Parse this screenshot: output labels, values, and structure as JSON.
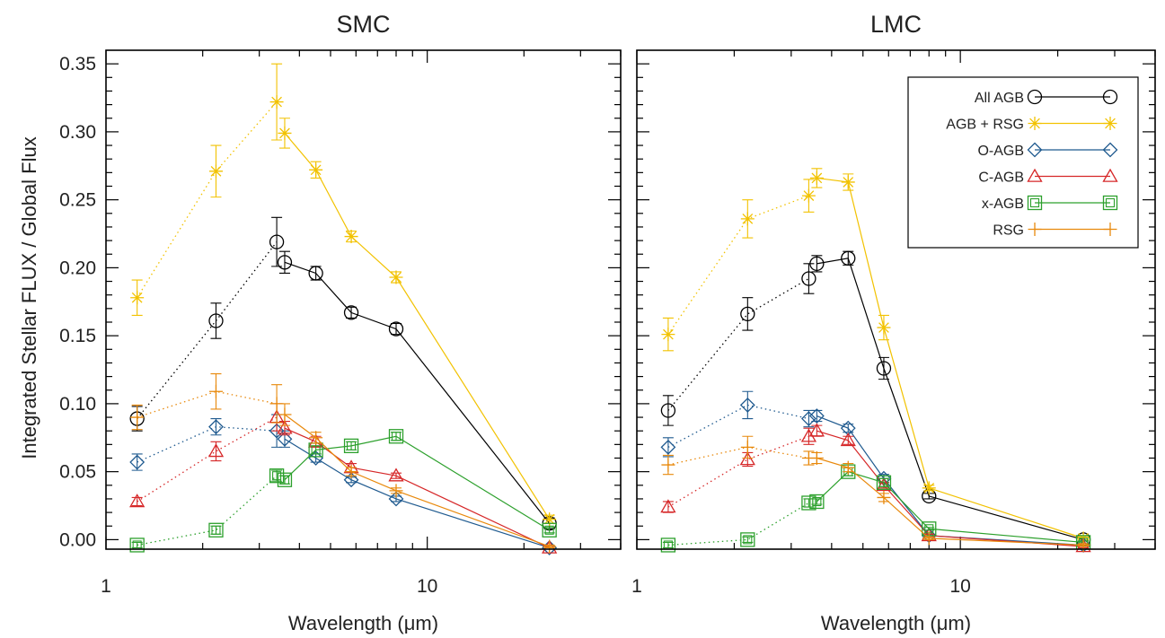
{
  "figure": {
    "ylabel": "Integrated Stellar FLUX / Global Flux",
    "xlabel": "Wavelength (μm)",
    "xticks": [
      "1",
      "10"
    ],
    "yticks": [
      "0.00",
      "0.05",
      "0.10",
      "0.15",
      "0.20",
      "0.25",
      "0.30",
      "0.35"
    ]
  },
  "colors": {
    "all_agb": "#000000",
    "agb_rsg": "#f2c200",
    "o_agb": "#1f5a8f",
    "c_agb": "#d62728",
    "x_agb": "#2ca02c",
    "rsg": "#e8890c"
  },
  "chart_data": [
    {
      "type": "line",
      "title": "SMC",
      "xlabel": "Wavelength (μm)",
      "ylabel": "Integrated Stellar FLUX / Global Flux",
      "xscale": "log",
      "xlim": [
        1,
        40
      ],
      "ylim": [
        -0.007,
        0.36
      ],
      "legend": false,
      "series": [
        {
          "name": "All AGB",
          "key": "all_agb",
          "marker": "circle",
          "x": [
            1.25,
            2.2,
            3.4,
            3.6,
            4.5,
            5.8,
            8.0,
            24.0
          ],
          "y": [
            0.089,
            0.161,
            0.219,
            0.204,
            0.196,
            0.167,
            0.155,
            0.012
          ],
          "err": [
            0.009,
            0.013,
            0.018,
            0.008,
            0.005,
            0.004,
            0.004,
            0.004
          ]
        },
        {
          "name": "AGB + RSG",
          "key": "agb_rsg",
          "marker": "asterisk",
          "x": [
            1.25,
            2.2,
            3.4,
            3.6,
            4.5,
            5.8,
            8.0,
            24.0
          ],
          "y": [
            0.178,
            0.271,
            0.322,
            0.299,
            0.272,
            0.223,
            0.193,
            0.015
          ],
          "err": [
            0.013,
            0.019,
            0.028,
            0.011,
            0.006,
            0.004,
            0.004,
            0.003
          ]
        },
        {
          "name": "O-AGB",
          "key": "o_agb",
          "marker": "diamond",
          "x": [
            1.25,
            2.2,
            3.4,
            3.6,
            4.5,
            5.8,
            8.0,
            24.0
          ],
          "y": [
            0.057,
            0.083,
            0.08,
            0.074,
            0.06,
            0.044,
            0.03,
            -0.006
          ],
          "err": [
            0.006,
            0.006,
            0.012,
            0.006,
            0.003,
            0.002,
            0.002,
            0.001
          ]
        },
        {
          "name": "C-AGB",
          "key": "c_agb",
          "marker": "triangle",
          "x": [
            1.25,
            2.2,
            3.4,
            3.6,
            4.5,
            5.8,
            8.0,
            24.0
          ],
          "y": [
            0.028,
            0.065,
            0.09,
            0.082,
            0.072,
            0.053,
            0.047,
            -0.006
          ],
          "err": [
            0.003,
            0.007,
            0.01,
            0.005,
            0.004,
            0.003,
            0.002,
            0.001
          ]
        },
        {
          "name": "x-AGB",
          "key": "x_agb",
          "marker": "square",
          "x": [
            1.25,
            2.2,
            3.4,
            3.6,
            4.5,
            5.8,
            8.0,
            24.0
          ],
          "y": [
            -0.004,
            0.007,
            0.047,
            0.044,
            0.066,
            0.069,
            0.076,
            0.007
          ],
          "err": [
            0.002,
            0.003,
            0.004,
            0.003,
            0.003,
            0.003,
            0.003,
            0.002
          ]
        },
        {
          "name": "RSG",
          "key": "rsg",
          "marker": "plus",
          "x": [
            1.25,
            2.2,
            3.4,
            3.6,
            4.5,
            5.8,
            8.0,
            24.0
          ],
          "y": [
            0.09,
            0.109,
            0.1,
            0.092,
            0.075,
            0.05,
            0.036,
            -0.005
          ],
          "err": [
            0.009,
            0.013,
            0.014,
            0.008,
            0.004,
            0.003,
            0.002,
            0.001
          ]
        }
      ]
    },
    {
      "type": "line",
      "title": "LMC",
      "xlabel": "Wavelength (μm)",
      "ylabel": "",
      "xscale": "log",
      "xlim": [
        1,
        40
      ],
      "ylim": [
        -0.007,
        0.36
      ],
      "legend": true,
      "legend_position": "top-right",
      "series": [
        {
          "name": "All AGB",
          "key": "all_agb",
          "marker": "circle",
          "x": [
            1.25,
            2.2,
            3.4,
            3.6,
            4.5,
            5.8,
            8.0,
            24.0
          ],
          "y": [
            0.095,
            0.166,
            0.192,
            0.203,
            0.207,
            0.126,
            0.032,
            0.0
          ],
          "err": [
            0.011,
            0.012,
            0.011,
            0.006,
            0.005,
            0.008,
            0.002,
            0.001
          ]
        },
        {
          "name": "AGB + RSG",
          "key": "agb_rsg",
          "marker": "asterisk",
          "x": [
            1.25,
            2.2,
            3.4,
            3.6,
            4.5,
            5.8,
            8.0,
            24.0
          ],
          "y": [
            0.151,
            0.236,
            0.253,
            0.266,
            0.263,
            0.156,
            0.038,
            0.001
          ],
          "err": [
            0.012,
            0.014,
            0.012,
            0.007,
            0.006,
            0.009,
            0.002,
            0.001
          ]
        },
        {
          "name": "O-AGB",
          "key": "o_agb",
          "marker": "diamond",
          "x": [
            1.25,
            2.2,
            3.4,
            3.6,
            4.5,
            5.8,
            8.0,
            24.0
          ],
          "y": [
            0.068,
            0.099,
            0.089,
            0.091,
            0.082,
            0.045,
            0.003,
            -0.004
          ],
          "err": [
            0.007,
            0.01,
            0.006,
            0.004,
            0.003,
            0.003,
            0.001,
            0.001
          ]
        },
        {
          "name": "C-AGB",
          "key": "c_agb",
          "marker": "triangle",
          "x": [
            1.25,
            2.2,
            3.4,
            3.6,
            4.5,
            5.8,
            8.0,
            24.0
          ],
          "y": [
            0.024,
            0.059,
            0.076,
            0.08,
            0.073,
            0.04,
            0.003,
            -0.005
          ],
          "err": [
            0.004,
            0.005,
            0.006,
            0.004,
            0.003,
            0.002,
            0.001,
            0.001
          ]
        },
        {
          "name": "x-AGB",
          "key": "x_agb",
          "marker": "square",
          "x": [
            1.25,
            2.2,
            3.4,
            3.6,
            4.5,
            5.8,
            8.0,
            24.0
          ],
          "y": [
            -0.004,
            0.0,
            0.027,
            0.028,
            0.05,
            0.042,
            0.008,
            -0.002
          ],
          "err": [
            0.002,
            0.002,
            0.003,
            0.002,
            0.003,
            0.003,
            0.001,
            0.001
          ]
        },
        {
          "name": "RSG",
          "key": "rsg",
          "marker": "plus",
          "x": [
            1.25,
            2.2,
            3.4,
            3.6,
            4.5,
            5.8,
            8.0,
            24.0
          ],
          "y": [
            0.055,
            0.068,
            0.06,
            0.06,
            0.053,
            0.031,
            0.001,
            -0.004
          ],
          "err": [
            0.007,
            0.008,
            0.005,
            0.004,
            0.003,
            0.003,
            0.001,
            0.001
          ]
        }
      ]
    }
  ]
}
